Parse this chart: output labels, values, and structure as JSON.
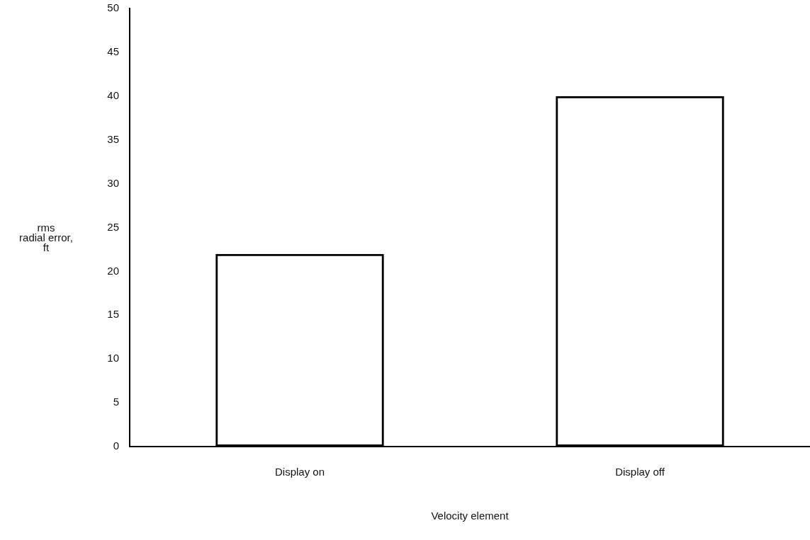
{
  "chart_data": {
    "type": "bar",
    "xlabel": "Velocity element",
    "ylabel": "rms\nradial error,\nft",
    "categories": [
      "Display on",
      "Display off"
    ],
    "values": [
      22,
      40
    ],
    "colors": [
      "#000000",
      "#000000"
    ],
    "ylim": [
      0,
      50
    ],
    "yticks": [
      0,
      5,
      10,
      15,
      20,
      25,
      30,
      35,
      40,
      45,
      50
    ],
    "grid": false,
    "legend": false
  }
}
